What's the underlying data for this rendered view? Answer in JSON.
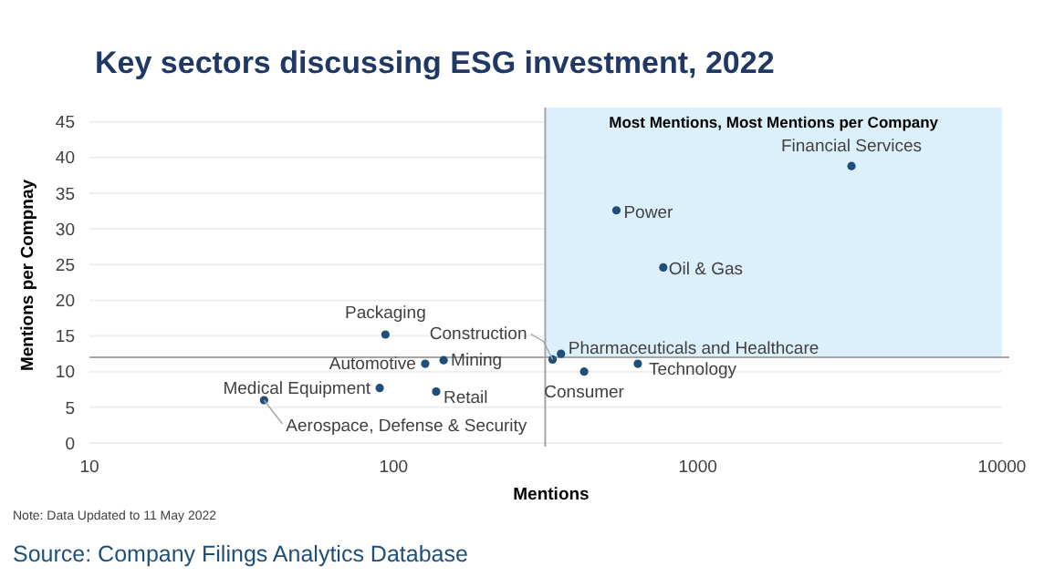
{
  "chart_data": {
    "type": "scatter",
    "title": "Key sectors discussing ESG investment, 2022",
    "xlabel": "Mentions",
    "ylabel": "Mentions per Compnay",
    "log": "x",
    "xlim": [
      10,
      10000
    ],
    "xticks": [
      10,
      100,
      1000,
      10000
    ],
    "ylim": [
      0,
      47
    ],
    "yticks": [
      0,
      5,
      10,
      15,
      20,
      25,
      30,
      35,
      40,
      45
    ],
    "grid": "y",
    "marker": "circle",
    "series": [
      {
        "name": "Financial Services",
        "color": "#1f4e79",
        "x": [
          3200
        ],
        "values": [
          38.8
        ]
      },
      {
        "name": "Power",
        "color": "#1f4e79",
        "x": [
          540
        ],
        "values": [
          32.6
        ]
      },
      {
        "name": "Oil & Gas",
        "color": "#1f4e79",
        "x": [
          770
        ],
        "values": [
          24.6
        ]
      },
      {
        "name": "Pharmaceuticals and Healthcare",
        "color": "#1f4e79",
        "x": [
          355
        ],
        "values": [
          12.5
        ]
      },
      {
        "name": "Construction",
        "color": "#1f4e79",
        "x": [
          333
        ],
        "values": [
          11.7
        ]
      },
      {
        "name": "Consumer",
        "color": "#1f4e79",
        "x": [
          423
        ],
        "values": [
          10
        ]
      },
      {
        "name": "Technology",
        "color": "#1f4e79",
        "x": [
          635
        ],
        "values": [
          11.1
        ]
      },
      {
        "name": "Packaging",
        "color": "#1f4e79",
        "x": [
          94
        ],
        "values": [
          15.2
        ]
      },
      {
        "name": "Automotive",
        "color": "#1f4e79",
        "x": [
          127
        ],
        "values": [
          11.1
        ]
      },
      {
        "name": "Mining",
        "color": "#1f4e79",
        "x": [
          146
        ],
        "values": [
          11.6
        ]
      },
      {
        "name": "Medical Equipment",
        "color": "#1f4e79",
        "x": [
          90
        ],
        "values": [
          7.7
        ]
      },
      {
        "name": "Retail",
        "color": "#1f4e79",
        "x": [
          138
        ],
        "values": [
          7.2
        ]
      },
      {
        "name": "Aerospace, Defense & Security",
        "color": "#1f4e79",
        "x": [
          37.5
        ],
        "values": [
          6
        ]
      }
    ],
    "ref_lines": [
      {
        "axis": "x",
        "value": 315,
        "color": "#a6a6a6"
      },
      {
        "axis": "y",
        "value": 12,
        "color": "#a6a6a6"
      }
    ],
    "bands": [
      {
        "axis": "x",
        "from": 315,
        "to": 10000,
        "label": "Most Mentions, Most Mentions per Company",
        "color": "#dcf0fb"
      }
    ],
    "annotations": [
      "Note: Data Updated to 11 May 2022",
      "Source: Company Filings Analytics Database"
    ]
  }
}
